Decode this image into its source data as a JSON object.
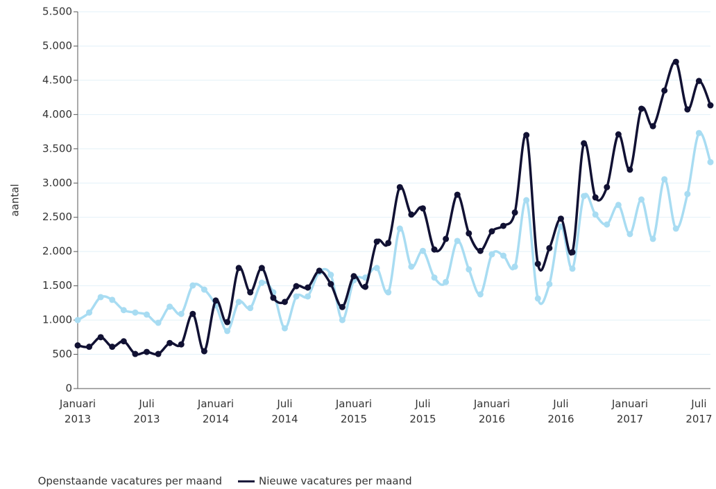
{
  "chart_data": {
    "type": "line",
    "ylabel": "aantal",
    "categories": [
      [
        "Januari",
        "2013"
      ],
      null,
      null,
      null,
      null,
      null,
      [
        "Juli",
        "2013"
      ],
      null,
      null,
      null,
      null,
      null,
      [
        "Januari",
        "2014"
      ],
      null,
      null,
      null,
      null,
      null,
      [
        "Juli",
        "2014"
      ],
      null,
      null,
      null,
      null,
      null,
      [
        "Januari",
        "2015"
      ],
      null,
      null,
      null,
      null,
      null,
      [
        "Juli",
        "2015"
      ],
      null,
      null,
      null,
      null,
      null,
      [
        "Januari",
        "2016"
      ],
      null,
      null,
      null,
      null,
      null,
      [
        "Juli",
        "2016"
      ],
      null,
      null,
      null,
      null,
      null,
      [
        "Januari",
        "2017"
      ],
      null,
      null,
      null,
      null,
      null,
      [
        "Juli",
        "2017"
      ],
      null
    ],
    "series": [
      {
        "name": "Openstaande vacatures per maand",
        "color": "#a8dcf2",
        "values": [
          1000,
          1110,
          1335,
          1295,
          1145,
          1110,
          1080,
          960,
          1195,
          1090,
          1505,
          1445,
          1215,
          840,
          1265,
          1175,
          1545,
          1405,
          880,
          1345,
          1345,
          1700,
          1660,
          1000,
          1580,
          1620,
          1760,
          1405,
          2335,
          1780,
          2010,
          1620,
          1555,
          2155,
          1740,
          1375,
          1960,
          1940,
          1780,
          2750,
          1315,
          1525,
          2365,
          1750,
          2810,
          2540,
          2395,
          2680,
          2255,
          2760,
          2185,
          3055,
          2335,
          2840,
          3730,
          3305
        ]
      },
      {
        "name": "Nieuwe vacatures per maand",
        "color": "#111133",
        "values": [
          630,
          610,
          750,
          610,
          690,
          505,
          535,
          505,
          665,
          645,
          1090,
          545,
          1285,
          970,
          1760,
          1405,
          1760,
          1325,
          1265,
          1495,
          1475,
          1720,
          1525,
          1190,
          1640,
          1485,
          2145,
          2125,
          2940,
          2540,
          2630,
          2030,
          2185,
          2830,
          2265,
          2010,
          2295,
          2375,
          2570,
          3700,
          1820,
          2050,
          2480,
          1990,
          3580,
          2790,
          2940,
          3710,
          3195,
          4085,
          3830,
          4350,
          4770,
          4075,
          4490,
          4135
        ]
      }
    ],
    "ylim": [
      0,
      5500
    ],
    "yticks": [
      0,
      500,
      {
        "value": 1000,
        "label": "1.000"
      },
      {
        "value": 1500,
        "label": "1.500"
      },
      {
        "value": 2000,
        "label": "2.000"
      },
      {
        "value": 2500,
        "label": "2.500"
      },
      {
        "value": 3000,
        "label": "3.000"
      },
      {
        "value": 3500,
        "label": "3.500"
      },
      {
        "value": 4000,
        "label": "4.000"
      },
      {
        "value": 4500,
        "label": "4.500"
      },
      {
        "value": 5000,
        "label": "5.000"
      },
      {
        "value": 5500,
        "label": "5.500"
      }
    ],
    "grid": true
  }
}
